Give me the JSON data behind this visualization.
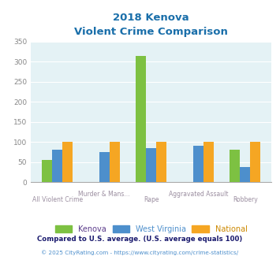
{
  "title_line1": "2018 Kenova",
  "title_line2": "Violent Crime Comparison",
  "categories": [
    "All Violent Crime",
    "Murder & Mans...",
    "Rape",
    "Aggravated Assault",
    "Robbery"
  ],
  "kenova": [
    55,
    0,
    315,
    0,
    80
  ],
  "west_virginia": [
    80,
    75,
    85,
    90,
    37
  ],
  "national": [
    100,
    100,
    100,
    100,
    100
  ],
  "kenova_color": "#7dc142",
  "wv_color": "#4d8fcc",
  "national_color": "#f5a623",
  "bg_color": "#e4f2f5",
  "title_color": "#1a6faa",
  "xlabel_top_color": "#9b8ea0",
  "xlabel_bot_color": "#9b8ea0",
  "ylabel_color": "#888888",
  "ylim": [
    0,
    350
  ],
  "yticks": [
    0,
    50,
    100,
    150,
    200,
    250,
    300,
    350
  ],
  "footnote1": "Compared to U.S. average. (U.S. average equals 100)",
  "footnote2": "© 2025 CityRating.com - https://www.cityrating.com/crime-statistics/",
  "footnote1_color": "#1a1a6e",
  "footnote2_color": "#4d8fcc",
  "legend_kenova_color": "#5a3a8a",
  "legend_wv_color": "#4d8fcc",
  "legend_nat_color": "#cc8800",
  "bar_width": 0.22
}
